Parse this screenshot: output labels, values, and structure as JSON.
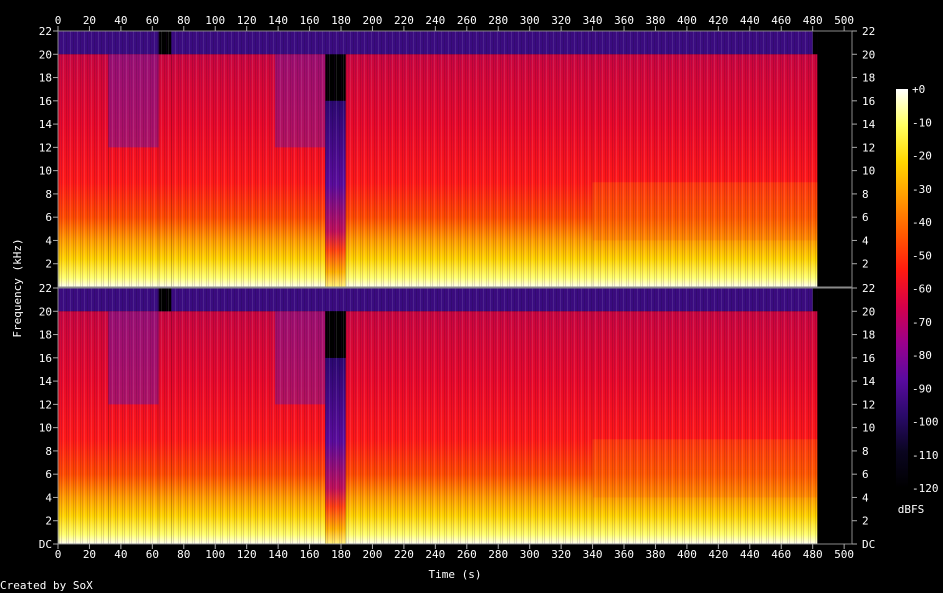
{
  "chart_data": {
    "type": "heatmap",
    "subtype": "spectrogram",
    "channels": 2,
    "x_axis": {
      "label": "Time (s)",
      "unit": "s",
      "range": [
        0,
        505
      ],
      "ticks": [
        "0",
        "20",
        "40",
        "60",
        "80",
        "100",
        "120",
        "140",
        "160",
        "180",
        "200",
        "220",
        "240",
        "260",
        "280",
        "300",
        "320",
        "340",
        "360",
        "380",
        "400",
        "420",
        "440",
        "460",
        "480",
        "500"
      ],
      "tick_values": [
        0,
        20,
        40,
        60,
        80,
        100,
        120,
        140,
        160,
        180,
        200,
        220,
        240,
        260,
        280,
        300,
        320,
        340,
        360,
        380,
        400,
        420,
        440,
        460,
        480,
        500
      ]
    },
    "y_axis": {
      "label": "Frequency (kHz)",
      "unit": "kHz",
      "range": [
        0,
        22
      ],
      "ticks": [
        "DC",
        "2",
        "4",
        "6",
        "8",
        "10",
        "12",
        "14",
        "16",
        "18",
        "20",
        "22"
      ],
      "tick_values": [
        0,
        2,
        4,
        6,
        8,
        10,
        12,
        14,
        16,
        18,
        20,
        22
      ]
    },
    "colorbar": {
      "label": "dBFS",
      "range": [
        -120,
        0
      ],
      "ticks": [
        "+0",
        "-10",
        "-20",
        "-30",
        "-40",
        "-50",
        "-60",
        "-70",
        "-80",
        "-90",
        "-100",
        "-110",
        "-120"
      ],
      "tick_values": [
        0,
        -10,
        -20,
        -30,
        -40,
        -50,
        -60,
        -70,
        -80,
        -90,
        -100,
        -110,
        -120
      ],
      "colors": [
        "#ffffff",
        "#ffff60",
        "#ffd700",
        "#ff9a00",
        "#ff5a00",
        "#ff1a10",
        "#d4004a",
        "#9a008c",
        "#5a0aa0",
        "#2a0a6a",
        "#0a0520",
        "#000000"
      ]
    },
    "audio_end_time": 483,
    "segments": [
      {
        "start": 0,
        "end": 32,
        "top_khz": 20
      },
      {
        "start": 32,
        "end": 64,
        "top_khz": 20
      },
      {
        "start": 64,
        "end": 72,
        "top_khz": 20
      },
      {
        "start": 72,
        "end": 138,
        "top_khz": 20
      },
      {
        "start": 138,
        "end": 170,
        "top_khz": 20
      },
      {
        "start": 170,
        "end": 183,
        "top_khz": 16
      },
      {
        "start": 183,
        "end": 340,
        "top_khz": 20
      },
      {
        "start": 340,
        "end": 483,
        "top_khz": 20
      }
    ],
    "background_color": "#000000",
    "grid": false
  },
  "footer": {
    "credit": "Created by SoX"
  }
}
